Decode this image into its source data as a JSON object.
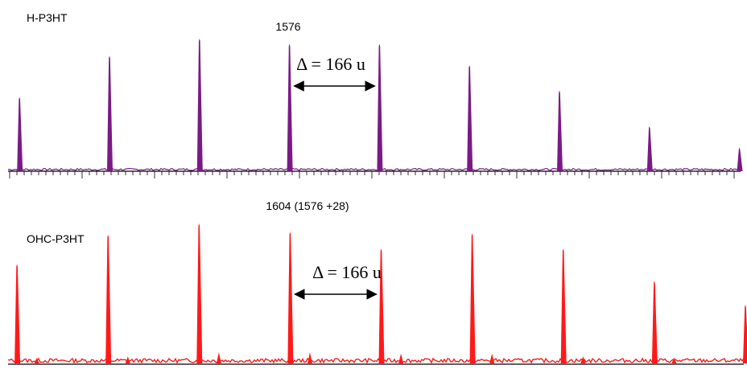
{
  "chart_data": [
    {
      "type": "line",
      "series": [
        {
          "name": "H-P3HT",
          "color": "#7a1a86",
          "peaks": [
            {
              "x": 1078,
              "y": 0.56
            },
            {
              "x": 1244,
              "y": 0.87
            },
            {
              "x": 1410,
              "y": 1.0
            },
            {
              "x": 1576,
              "y": 0.96
            },
            {
              "x": 1742,
              "y": 0.96
            },
            {
              "x": 1908,
              "y": 0.8
            },
            {
              "x": 2074,
              "y": 0.61
            },
            {
              "x": 2240,
              "y": 0.34
            },
            {
              "x": 2406,
              "y": 0.18
            }
          ]
        }
      ],
      "xlim": [
        1042,
        2420
      ],
      "peak_label": "1576",
      "annotation": {
        "text": "Δ = 166 u",
        "from": 1576,
        "to": 1742
      }
    },
    {
      "type": "line",
      "series": [
        {
          "name": "OHC-P3HT",
          "color": "#ff1a1a",
          "peaks": [
            {
              "x": 1106,
              "y": 0.71
            },
            {
              "x": 1272,
              "y": 0.92
            },
            {
              "x": 1438,
              "y": 1.0
            },
            {
              "x": 1604,
              "y": 0.94
            },
            {
              "x": 1770,
              "y": 0.82
            },
            {
              "x": 1936,
              "y": 0.93
            },
            {
              "x": 2102,
              "y": 0.82
            },
            {
              "x": 2268,
              "y": 0.59
            },
            {
              "x": 2434,
              "y": 0.42
            }
          ],
          "minor_peaks": [
            {
              "x": 1142,
              "y": 0.04
            },
            {
              "x": 1308,
              "y": 0.05
            },
            {
              "x": 1474,
              "y": 0.08
            },
            {
              "x": 1640,
              "y": 0.08
            },
            {
              "x": 1806,
              "y": 0.07
            },
            {
              "x": 1972,
              "y": 0.07
            },
            {
              "x": 2138,
              "y": 0.05
            },
            {
              "x": 2304,
              "y": 0.04
            }
          ]
        }
      ],
      "xlim": [
        1075,
        2437
      ],
      "peak_label": "1604 (1576 +28)",
      "annotation": {
        "text": "Δ = 166 u",
        "from": 1604,
        "to": 1770
      }
    }
  ]
}
